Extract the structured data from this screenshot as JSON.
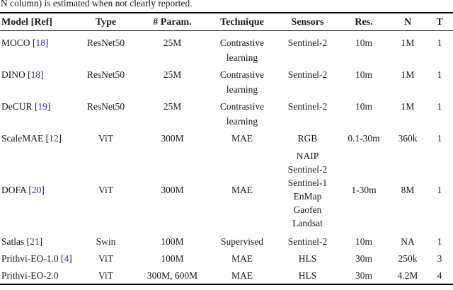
{
  "caption": "N column) is estimated when not clearly reported.",
  "citation": {
    "open": "[",
    "close": "]"
  },
  "colors": {
    "link_blue": "#2b2bd5",
    "text": "#1a1a1a",
    "rule": "#000000"
  },
  "table": {
    "headers": [
      "Model [Ref]",
      "Type",
      "# Param.",
      "Technique",
      "Sensors",
      "Res.",
      "N",
      "T"
    ],
    "rows": [
      {
        "model": "MOCO",
        "ref": "18",
        "type": "ResNet50",
        "params": "25M",
        "technique": "Contrastive learning",
        "sensors": [
          "Sentinel-2"
        ],
        "res": "10m",
        "n": "1M",
        "t": "1"
      },
      {
        "model": "DINO",
        "ref": "18",
        "type": "ResNet50",
        "params": "25M",
        "technique": "Contrastive learning",
        "sensors": [
          "Sentinel-2"
        ],
        "res": "10m",
        "n": "1M",
        "t": "1"
      },
      {
        "model": "DeCUR",
        "ref": "19",
        "type": "ResNet50",
        "params": "25M",
        "technique": "Contrastive learning",
        "sensors": [
          "Sentinel-2"
        ],
        "res": "10m",
        "n": "1M",
        "t": "1"
      },
      {
        "model": "ScaleMAE",
        "ref": "12",
        "type": "ViT",
        "params": "300M",
        "technique": "MAE",
        "sensors": [
          "RGB"
        ],
        "res": "0.1-30m",
        "n": "360k",
        "t": "1"
      },
      {
        "model": "DOFA",
        "ref": "20",
        "type": "ViT",
        "params": "300M",
        "technique": "MAE",
        "sensors": [
          "NAIP",
          "Sentinel-2",
          "Sentinel-1",
          "EnMap",
          "Gaofen",
          "Landsat"
        ],
        "res": "1-30m",
        "n": "8M",
        "t": "1"
      },
      {
        "model": "Satlas",
        "ref": "21",
        "type": "Swin",
        "params": "100M",
        "technique": "Supervised",
        "sensors": [
          "Sentinel-2"
        ],
        "res": "10m",
        "n": "NA",
        "t": "1"
      },
      {
        "model": "Prithvi-EO-1.0",
        "ref": "4",
        "type": "ViT",
        "params": "100M",
        "technique": "MAE",
        "sensors": [
          "HLS"
        ],
        "res": "30m",
        "n": "250k",
        "t": "3"
      },
      {
        "model": "Prithvi-EO-2.0",
        "type": "ViT",
        "params": "300M, 600M",
        "technique": "MAE",
        "sensors": [
          "HLS"
        ],
        "res": "30m",
        "n": "4.2M",
        "t": "4"
      }
    ]
  }
}
